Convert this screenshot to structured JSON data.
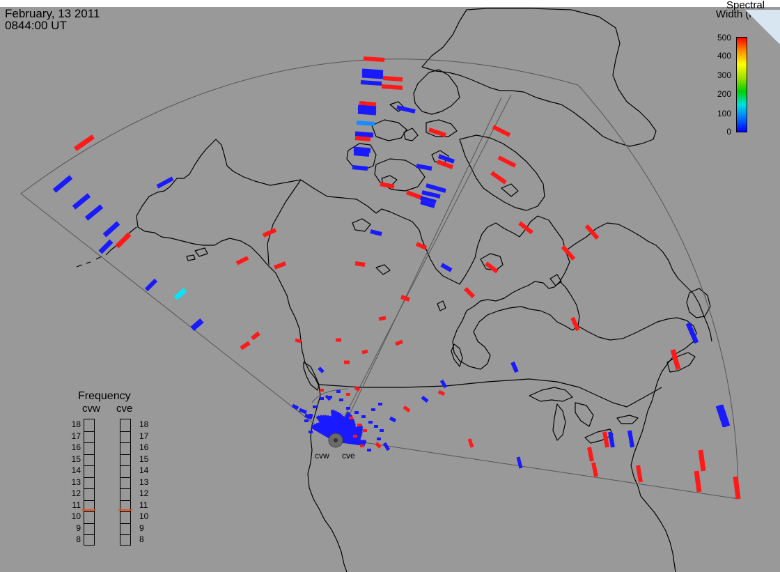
{
  "header": {
    "date": "February, 13 2011",
    "time": "0844:00 UT"
  },
  "legend": {
    "title_line1": "Spectral",
    "title_line2": "Width (km/s)",
    "ticks": [
      "500",
      "400",
      "300",
      "200",
      "100",
      "0"
    ],
    "colormap": [
      "#0000ff",
      "#0070ff",
      "#00e0e0",
      "#00d000",
      "#a0e000",
      "#ffff00",
      "#ff9000",
      "#ff0000"
    ]
  },
  "frequency_panel": {
    "title": "Frequency",
    "radars": [
      "cvw",
      "cve"
    ],
    "scale": [
      "18",
      "17",
      "16",
      "15",
      "14",
      "13",
      "12",
      "11",
      "10",
      "9",
      "8"
    ],
    "current_mhz": {
      "cvw": 10.7,
      "cve": 10.7
    },
    "marker_color": "#e8501a"
  },
  "radars": [
    {
      "code": "cvw",
      "label": "cvw"
    },
    {
      "code": "cve",
      "label": "cve"
    }
  ],
  "colors": {
    "background": "#999999",
    "coastline": "#000000",
    "fov_outline": "#555555",
    "site": "#666666"
  }
}
